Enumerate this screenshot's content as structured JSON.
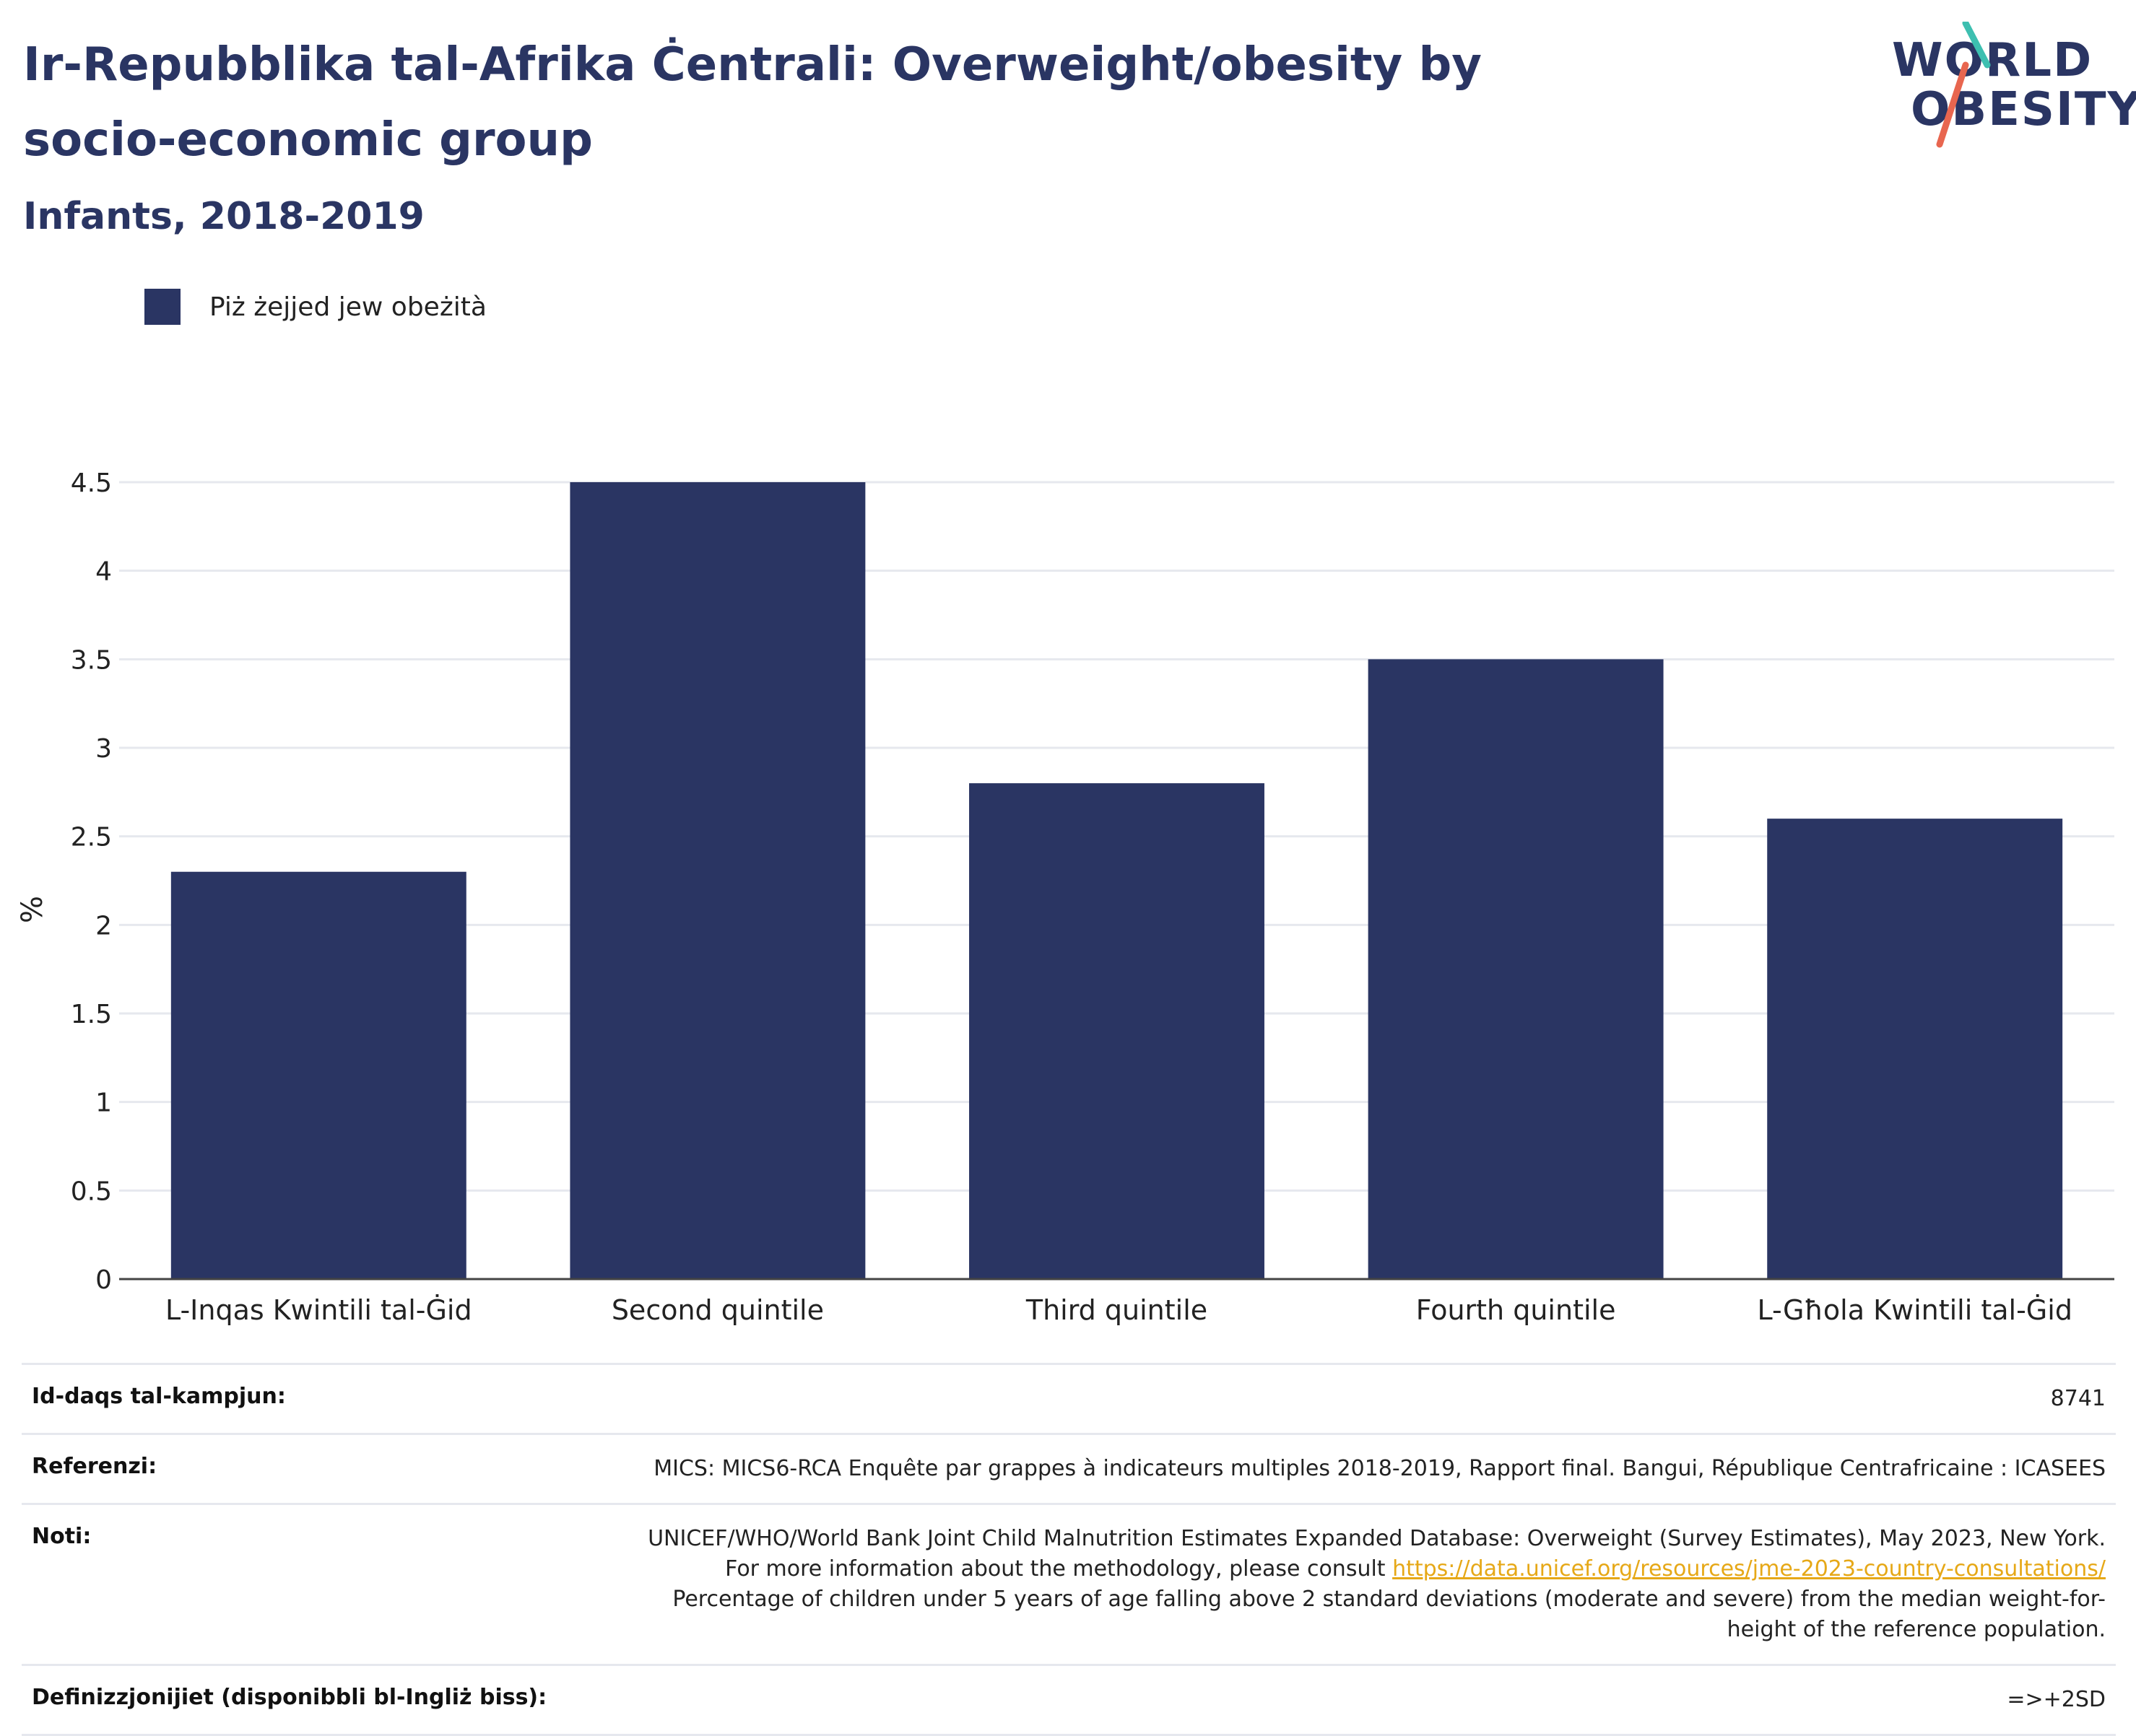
{
  "header": {
    "title": "Ir-Repubblika tal-Afrika Ċentrali: Overweight/obesity by socio-economic group",
    "subtitle": "Infants, 2018-2019"
  },
  "logo": {
    "line1": "WORLD",
    "line2": "OBESITY",
    "colors": {
      "teal": "#3dbfb0",
      "coral": "#e8664f",
      "navy": "#2a3563"
    }
  },
  "legend": {
    "label": "Piż żejjed jew obeżità"
  },
  "chart_data": {
    "type": "bar",
    "categories": [
      "L-Inqas Kwintili tal-Ġid",
      "Second quintile",
      "Third quintile",
      "Fourth quintile",
      "L-Għola Kwintili tal-Ġid"
    ],
    "series": [
      {
        "name": "Piż żejjed jew obeżità",
        "values": [
          2.3,
          4.5,
          2.8,
          3.5,
          2.6
        ],
        "color": "#2a3563"
      }
    ],
    "ylabel": "%",
    "ylim": [
      0,
      4.5
    ],
    "yticks": [
      "0",
      "0.5",
      "1",
      "1.5",
      "2",
      "2.5",
      "3",
      "3.5",
      "4",
      "4.5"
    ],
    "grid": true,
    "legend_position": "top-left"
  },
  "meta": {
    "sample_label": "Id-daqs tal-kampjun:",
    "sample_value": "8741",
    "ref_label": "Referenzi:",
    "ref_value": "MICS: MICS6-RCA Enquête par grappes à indicateurs multiples 2018-2019, Rapport final. Bangui, République Centrafricaine : ICASEES",
    "notes_label": "Noti:",
    "notes_text1": "UNICEF/WHO/World Bank Joint Child Malnutrition Estimates Expanded Database: Overweight (Survey Estimates), May 2023, New York. For more information about the methodology, please consult ",
    "notes_link": "https://data.unicef.org/resources/jme-2023-country-consultations/",
    "notes_text2": "Percentage of children under 5 years of age falling above 2 standard deviations (moderate and severe) from the median weight-for-height of the reference population.",
    "def_label": "Definizzjonijiet (disponibbli bl-Ingliż biss):",
    "def_value": "=>+2SD"
  }
}
